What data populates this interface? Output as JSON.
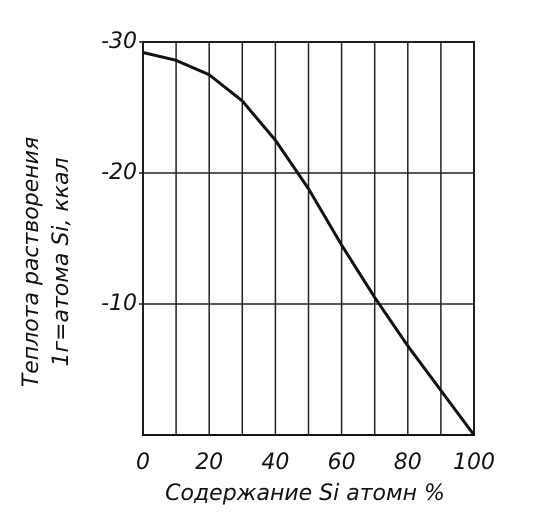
{
  "chart_data": {
    "type": "line",
    "ylabel": [
      "Теплота растворения",
      "1г=атома Si, ккал"
    ],
    "xlabel": "Содержание Si атомн %",
    "x": [
      0,
      10,
      20,
      30,
      40,
      50,
      60,
      70,
      80,
      90,
      100
    ],
    "values": [
      -29.2,
      -28.6,
      -27.5,
      -25.5,
      -22.5,
      -18.8,
      -14.5,
      -10.5,
      -6.8,
      -3.4,
      0
    ],
    "color": "#111111",
    "xlim": [
      0,
      100
    ],
    "xticks": [
      0,
      20,
      40,
      60,
      80,
      100
    ],
    "x_minor_ticks": [
      10,
      30,
      50,
      70,
      90
    ],
    "ylim": [
      0,
      -30
    ],
    "yticks": [
      -30,
      -20,
      -10
    ],
    "grid": true
  }
}
